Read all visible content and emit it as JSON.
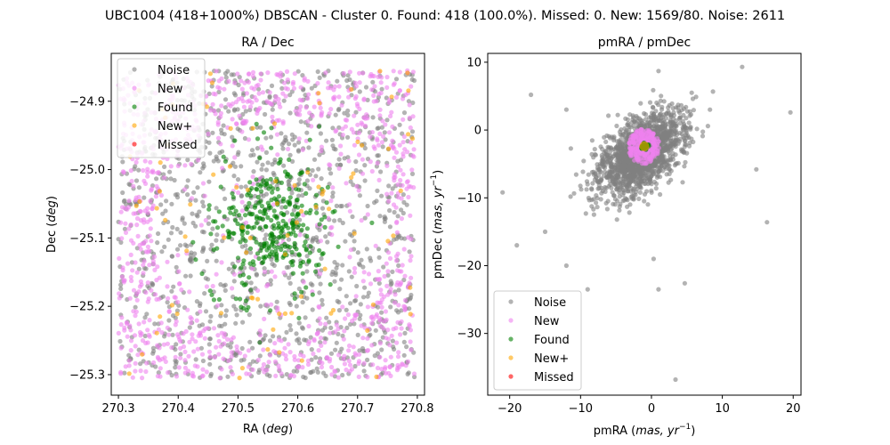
{
  "figure": {
    "suptitle": "UBC1004 (418+1000%) DBSCAN - Cluster 0. Found: 418 (100.0%). Missed: 0. New: 1569/80. Noise: 2611"
  },
  "colors": {
    "noise": "#808080",
    "new": "#ee82ee",
    "found": "#008000",
    "newplus": "#ffa500",
    "missed": "#ff0000"
  },
  "chart_data": [
    {
      "type": "scatter",
      "title": "RA / Dec",
      "xlabel": "RA (deg)",
      "ylabel": "Dec (deg)",
      "xlim": [
        270.288,
        270.812
      ],
      "ylim": [
        -25.33,
        -24.83
      ],
      "xticks": [
        270.3,
        270.4,
        270.5,
        270.6,
        270.7,
        270.8
      ],
      "xtick_labels": [
        "270.3",
        "270.4",
        "270.5",
        "270.6",
        "270.7",
        "270.8"
      ],
      "yticks": [
        -24.9,
        -25.0,
        -25.1,
        -25.2,
        -25.3
      ],
      "ytick_labels": [
        "−24.9",
        "−25.0",
        "−25.1",
        "−25.2",
        "−25.3"
      ],
      "legend": {
        "placement": "top-left",
        "entries": [
          "Noise",
          "New",
          "Found",
          "New+",
          "Missed"
        ]
      },
      "series": [
        {
          "name": "Noise",
          "color_key": "noise",
          "description_points": [
            [
              270.31,
              -24.88
            ],
            [
              270.35,
              -24.95
            ],
            [
              270.42,
              -25.02
            ],
            [
              270.71,
              -24.92
            ],
            [
              270.78,
              -25.21
            ],
            [
              270.33,
              -25.25
            ],
            [
              270.62,
              -25.28
            ],
            [
              270.45,
              -25.18
            ],
            [
              270.76,
              -25.05
            ],
            [
              270.52,
              -24.87
            ]
          ]
        },
        {
          "name": "New",
          "color_key": "new",
          "description_points": [
            [
              270.32,
              -24.9
            ],
            [
              270.38,
              -25.12
            ],
            [
              270.69,
              -25.15
            ],
            [
              270.74,
              -24.96
            ],
            [
              270.44,
              -25.27
            ],
            [
              270.6,
              -24.88
            ],
            [
              270.36,
              -25.22
            ],
            [
              270.78,
              -25.28
            ],
            [
              270.66,
              -25.07
            ],
            [
              270.41,
              -24.94
            ]
          ]
        },
        {
          "name": "Found",
          "color_key": "found",
          "description_points": [
            [
              270.55,
              -25.08
            ],
            [
              270.53,
              -25.05
            ],
            [
              270.57,
              -25.1
            ],
            [
              270.5,
              -25.09
            ],
            [
              270.6,
              -25.04
            ],
            [
              270.52,
              -25.12
            ],
            [
              270.58,
              -25.0
            ],
            [
              270.56,
              -25.14
            ],
            [
              270.48,
              -25.06
            ],
            [
              270.62,
              -25.12
            ]
          ]
        },
        {
          "name": "New+",
          "color_key": "newplus",
          "description_points": [
            [
              270.38,
              -24.94
            ],
            [
              270.66,
              -24.88
            ],
            [
              270.42,
              -25.04
            ],
            [
              270.72,
              -25.12
            ],
            [
              270.53,
              -25.24
            ],
            [
              270.76,
              -24.97
            ],
            [
              270.34,
              -25.16
            ],
            [
              270.63,
              -25.31
            ]
          ]
        },
        {
          "name": "Missed",
          "color_key": "missed",
          "description_points": []
        }
      ]
    },
    {
      "type": "scatter",
      "title": "pmRA / pmDec",
      "xlabel": "pmRA (mas, yr⁻¹)",
      "ylabel": "pmDec (mas, yr⁻¹)",
      "xlim": [
        -23.1,
        21.1
      ],
      "ylim": [
        -39.1,
        11.3
      ],
      "xticks": [
        -20,
        -10,
        0,
        10,
        20
      ],
      "xtick_labels": [
        "−20",
        "−10",
        "0",
        "10",
        "20"
      ],
      "yticks": [
        10,
        0,
        -10,
        -20,
        -30
      ],
      "ytick_labels": [
        "10",
        "0",
        "−10",
        "−20",
        "−30"
      ],
      "legend": {
        "placement": "bottom-left",
        "entries": [
          "Noise",
          "New",
          "Found",
          "New+",
          "Missed"
        ]
      },
      "series": [
        {
          "name": "Noise",
          "color_key": "noise",
          "description_points": [
            [
              -21.0,
              -9.2
            ],
            [
              -19.0,
              -17.0
            ],
            [
              -17.0,
              5.2
            ],
            [
              -15.0,
              -15.0
            ],
            [
              -12.0,
              -20.0
            ],
            [
              -9.0,
              -23.5
            ],
            [
              1.0,
              8.7
            ],
            [
              12.8,
              9.3
            ],
            [
              19.6,
              2.6
            ],
            [
              16.3,
              -13.6
            ],
            [
              14.8,
              -5.8
            ],
            [
              4.7,
              -22.6
            ],
            [
              3.4,
              -36.8
            ],
            [
              1.0,
              -23.5
            ],
            [
              0.3,
              -19.0
            ],
            [
              -12.0,
              3.0
            ]
          ]
        },
        {
          "name": "New",
          "color_key": "new",
          "description_points": [
            [
              -2.0,
              -1.0
            ],
            [
              -1.0,
              -4.0
            ],
            [
              0.0,
              -0.5
            ],
            [
              -3.0,
              -3.0
            ],
            [
              1.0,
              -2.5
            ],
            [
              -1.5,
              -1.5
            ]
          ]
        },
        {
          "name": "Found",
          "color_key": "found",
          "description_points": [
            [
              -1.0,
              -2.5
            ]
          ]
        },
        {
          "name": "New+",
          "color_key": "newplus",
          "description_points": [
            [
              -1.0,
              -2.4
            ]
          ]
        },
        {
          "name": "Missed",
          "color_key": "missed",
          "description_points": []
        }
      ]
    }
  ]
}
